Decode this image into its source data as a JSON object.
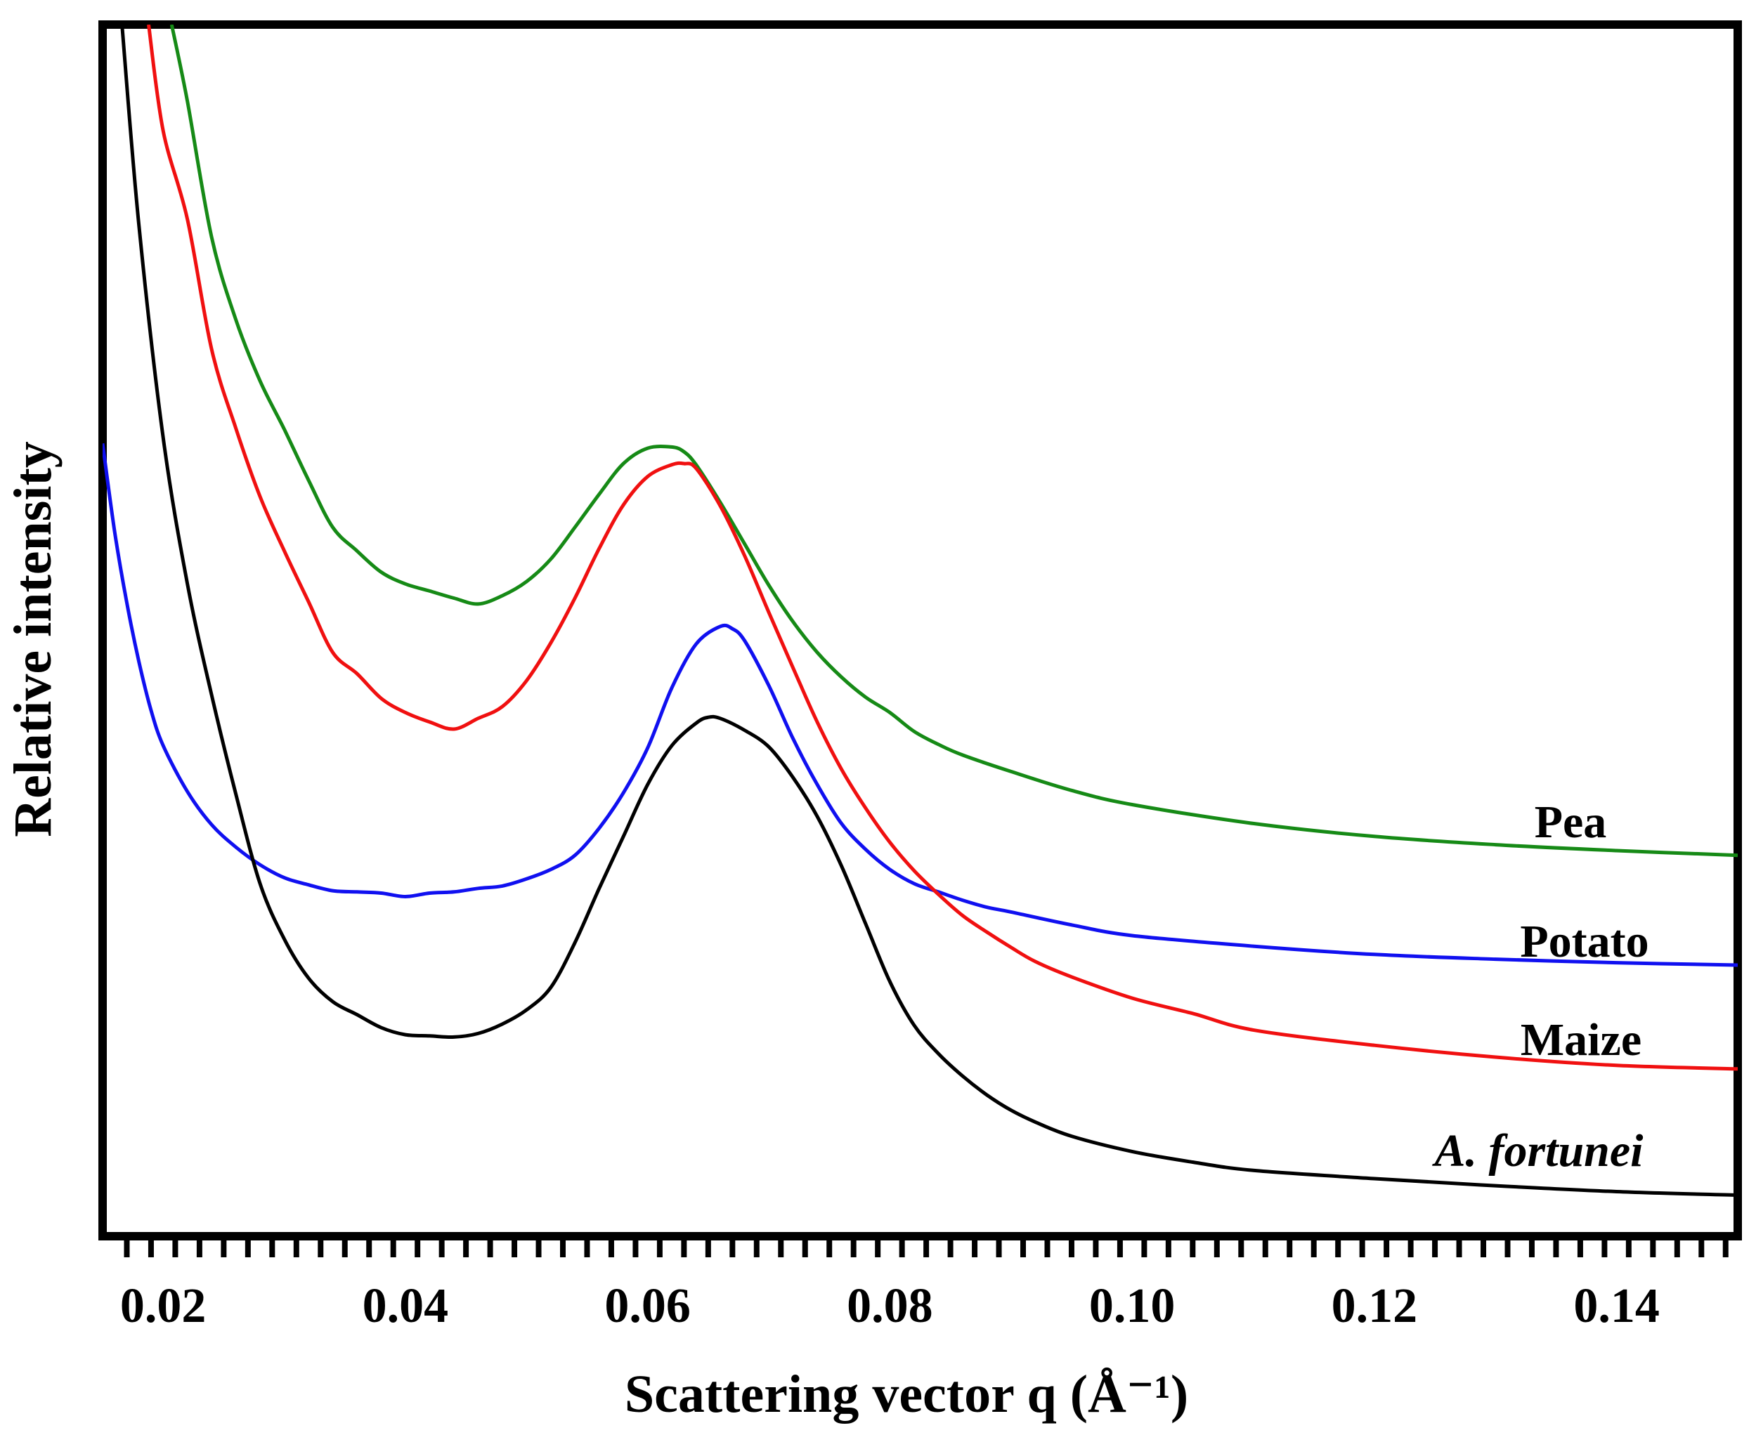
{
  "chart_data": {
    "type": "line",
    "title": "",
    "xlabel": "Scattering vector q (Å⁻¹)",
    "ylabel": "Relative intensity",
    "xlim": [
      0.015,
      0.15
    ],
    "ylim": [
      0,
      100
    ],
    "grid": false,
    "legend": "inline labels at right end of each curve",
    "x_ticks": [
      0.02,
      0.04,
      0.06,
      0.08,
      0.1,
      0.12,
      0.14
    ],
    "x_tick_labels": [
      "0.02",
      "0.04",
      "0.06",
      "0.08",
      "0.10",
      "0.12",
      "0.14"
    ],
    "x_minor_step": 0.002,
    "series": [
      {
        "name": "Pea",
        "color": "#168a16",
        "italic": false,
        "points": [
          [
            0.0207,
            100
          ],
          [
            0.022,
            93.5
          ],
          [
            0.024,
            82
          ],
          [
            0.026,
            75
          ],
          [
            0.028,
            69.8
          ],
          [
            0.03,
            65.7
          ],
          [
            0.032,
            61.4
          ],
          [
            0.034,
            57.4
          ],
          [
            0.036,
            55.4
          ],
          [
            0.038,
            53.6
          ],
          [
            0.04,
            52.6
          ],
          [
            0.042,
            52.0
          ],
          [
            0.044,
            51.4
          ],
          [
            0.046,
            50.9
          ],
          [
            0.048,
            51.6
          ],
          [
            0.05,
            52.8
          ],
          [
            0.052,
            54.7
          ],
          [
            0.054,
            57.4
          ],
          [
            0.056,
            60.2
          ],
          [
            0.058,
            62.8
          ],
          [
            0.06,
            64.1
          ],
          [
            0.062,
            64.2
          ],
          [
            0.063,
            63.8
          ],
          [
            0.064,
            62.7
          ],
          [
            0.066,
            59.5
          ],
          [
            0.068,
            56.0
          ],
          [
            0.07,
            52.5
          ],
          [
            0.072,
            49.4
          ],
          [
            0.074,
            46.8
          ],
          [
            0.076,
            44.7
          ],
          [
            0.078,
            43.0
          ],
          [
            0.08,
            41.7
          ],
          [
            0.082,
            40.1
          ],
          [
            0.084,
            39.0
          ],
          [
            0.086,
            38.1
          ],
          [
            0.09,
            36.7
          ],
          [
            0.095,
            35.1
          ],
          [
            0.1,
            33.9
          ],
          [
            0.11,
            32.3
          ],
          [
            0.12,
            31.2
          ],
          [
            0.13,
            30.5
          ],
          [
            0.14,
            30.0
          ],
          [
            0.15,
            29.6
          ]
        ]
      },
      {
        "name": "Potato",
        "color": "#1010f0",
        "italic": false,
        "points": [
          [
            0.015,
            64.5
          ],
          [
            0.016,
            57
          ],
          [
            0.017,
            51
          ],
          [
            0.018,
            46
          ],
          [
            0.019,
            41.9
          ],
          [
            0.02,
            38.9
          ],
          [
            0.022,
            35.0
          ],
          [
            0.024,
            32.2
          ],
          [
            0.026,
            30.3
          ],
          [
            0.028,
            28.8
          ],
          [
            0.03,
            27.7
          ],
          [
            0.032,
            27.1
          ],
          [
            0.034,
            26.6
          ],
          [
            0.036,
            26.5
          ],
          [
            0.038,
            26.4
          ],
          [
            0.04,
            26.1
          ],
          [
            0.042,
            26.4
          ],
          [
            0.044,
            26.5
          ],
          [
            0.046,
            26.8
          ],
          [
            0.048,
            27.0
          ],
          [
            0.05,
            27.6
          ],
          [
            0.052,
            28.4
          ],
          [
            0.054,
            29.6
          ],
          [
            0.056,
            31.9
          ],
          [
            0.058,
            34.9
          ],
          [
            0.06,
            38.7
          ],
          [
            0.062,
            43.8
          ],
          [
            0.064,
            47.5
          ],
          [
            0.066,
            49.0
          ],
          [
            0.067,
            48.8
          ],
          [
            0.068,
            47.8
          ],
          [
            0.07,
            44.0
          ],
          [
            0.072,
            39.5
          ],
          [
            0.074,
            35.6
          ],
          [
            0.076,
            32.3
          ],
          [
            0.078,
            30.1
          ],
          [
            0.08,
            28.4
          ],
          [
            0.082,
            27.2
          ],
          [
            0.084,
            26.5
          ],
          [
            0.086,
            25.8
          ],
          [
            0.088,
            25.2
          ],
          [
            0.09,
            24.8
          ],
          [
            0.095,
            23.7
          ],
          [
            0.1,
            22.8
          ],
          [
            0.11,
            21.9
          ],
          [
            0.12,
            21.2
          ],
          [
            0.13,
            20.8
          ],
          [
            0.14,
            20.5
          ],
          [
            0.15,
            20.3
          ]
        ]
      },
      {
        "name": "Maize",
        "color": "#f01010",
        "italic": false,
        "points": [
          [
            0.0188,
            100
          ],
          [
            0.02,
            91
          ],
          [
            0.022,
            83.5
          ],
          [
            0.024,
            72.5
          ],
          [
            0.026,
            65.8
          ],
          [
            0.028,
            60.0
          ],
          [
            0.03,
            55.4
          ],
          [
            0.032,
            51.1
          ],
          [
            0.034,
            46.8
          ],
          [
            0.036,
            45.0
          ],
          [
            0.038,
            42.9
          ],
          [
            0.04,
            41.7
          ],
          [
            0.042,
            40.9
          ],
          [
            0.044,
            40.3
          ],
          [
            0.046,
            41.2
          ],
          [
            0.048,
            42.2
          ],
          [
            0.05,
            44.4
          ],
          [
            0.052,
            47.6
          ],
          [
            0.054,
            51.4
          ],
          [
            0.056,
            55.6
          ],
          [
            0.058,
            59.3
          ],
          [
            0.06,
            61.7
          ],
          [
            0.062,
            62.7
          ],
          [
            0.063,
            62.8
          ],
          [
            0.064,
            62.4
          ],
          [
            0.066,
            59.2
          ],
          [
            0.068,
            55.0
          ],
          [
            0.07,
            50.2
          ],
          [
            0.072,
            45.5
          ],
          [
            0.074,
            40.9
          ],
          [
            0.076,
            36.9
          ],
          [
            0.078,
            33.6
          ],
          [
            0.08,
            30.7
          ],
          [
            0.082,
            28.3
          ],
          [
            0.084,
            26.3
          ],
          [
            0.086,
            24.5
          ],
          [
            0.088,
            23.1
          ],
          [
            0.09,
            21.8
          ],
          [
            0.092,
            20.6
          ],
          [
            0.095,
            19.3
          ],
          [
            0.1,
            17.5
          ],
          [
            0.105,
            16.2
          ],
          [
            0.11,
            14.8
          ],
          [
            0.12,
            13.5
          ],
          [
            0.13,
            12.5
          ],
          [
            0.14,
            11.8
          ],
          [
            0.15,
            11.5
          ]
        ]
      },
      {
        "name": "A. fortunei",
        "color": "#000000",
        "italic": true,
        "points": [
          [
            0.0166,
            100
          ],
          [
            0.018,
            83
          ],
          [
            0.02,
            65
          ],
          [
            0.022,
            52.6
          ],
          [
            0.024,
            43.2
          ],
          [
            0.026,
            34.8
          ],
          [
            0.028,
            27.2
          ],
          [
            0.03,
            22.5
          ],
          [
            0.032,
            19.2
          ],
          [
            0.034,
            17.2
          ],
          [
            0.036,
            16.1
          ],
          [
            0.038,
            15.0
          ],
          [
            0.04,
            14.4
          ],
          [
            0.042,
            14.3
          ],
          [
            0.044,
            14.2
          ],
          [
            0.046,
            14.5
          ],
          [
            0.048,
            15.3
          ],
          [
            0.05,
            16.5
          ],
          [
            0.052,
            18.4
          ],
          [
            0.054,
            22.2
          ],
          [
            0.056,
            26.8
          ],
          [
            0.058,
            31.2
          ],
          [
            0.06,
            35.6
          ],
          [
            0.062,
            38.9
          ],
          [
            0.064,
            40.8
          ],
          [
            0.065,
            41.3
          ],
          [
            0.066,
            41.2
          ],
          [
            0.068,
            40.2
          ],
          [
            0.07,
            38.8
          ],
          [
            0.072,
            36.2
          ],
          [
            0.074,
            32.9
          ],
          [
            0.076,
            28.7
          ],
          [
            0.078,
            23.8
          ],
          [
            0.08,
            18.9
          ],
          [
            0.082,
            15.2
          ],
          [
            0.084,
            12.8
          ],
          [
            0.086,
            10.9
          ],
          [
            0.088,
            9.3
          ],
          [
            0.09,
            8.0
          ],
          [
            0.092,
            7.0
          ],
          [
            0.095,
            5.8
          ],
          [
            0.1,
            4.5
          ],
          [
            0.105,
            3.6
          ],
          [
            0.11,
            2.9
          ],
          [
            0.12,
            2.2
          ],
          [
            0.13,
            1.6
          ],
          [
            0.14,
            1.1
          ],
          [
            0.15,
            0.8
          ]
        ]
      }
    ]
  }
}
